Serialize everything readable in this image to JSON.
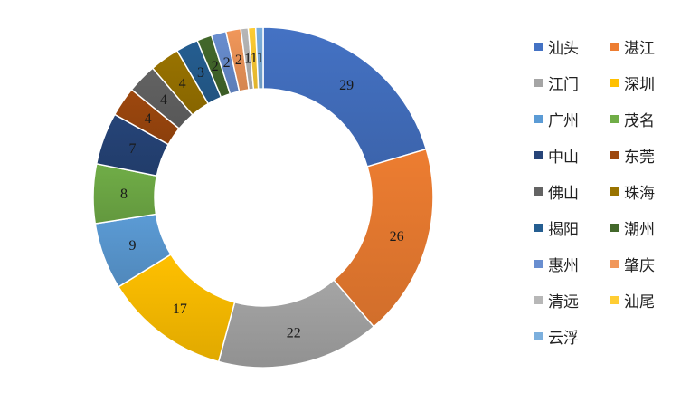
{
  "chart_data": {
    "type": "pie",
    "variant": "donut",
    "title": "",
    "legend_position": "right",
    "categories": [
      "汕头",
      "湛江",
      "江门",
      "深圳",
      "广州",
      "茂名",
      "中山",
      "东莞",
      "佛山",
      "珠海",
      "揭阳",
      "潮州",
      "惠州",
      "肇庆",
      "清远",
      "汕尾",
      "云浮"
    ],
    "values": [
      29,
      26,
      22,
      17,
      9,
      8,
      7,
      4,
      4,
      4,
      3,
      2,
      2,
      2,
      1,
      1,
      1
    ],
    "data_labels": [
      "29",
      "26",
      "22",
      "17",
      "9",
      "8",
      "7",
      "4",
      "4",
      "4",
      "3",
      "2",
      "2",
      "2",
      "1",
      "1",
      "1"
    ],
    "colors": [
      "#4472C4",
      "#ED7D31",
      "#A5A5A5",
      "#FFC000",
      "#5B9BD5",
      "#70AD47",
      "#264478",
      "#9E480E",
      "#636363",
      "#997300",
      "#255E91",
      "#43682B",
      "#698ED0",
      "#F1975A",
      "#B7B7B7",
      "#FFCD33",
      "#7CAFDD"
    ]
  }
}
